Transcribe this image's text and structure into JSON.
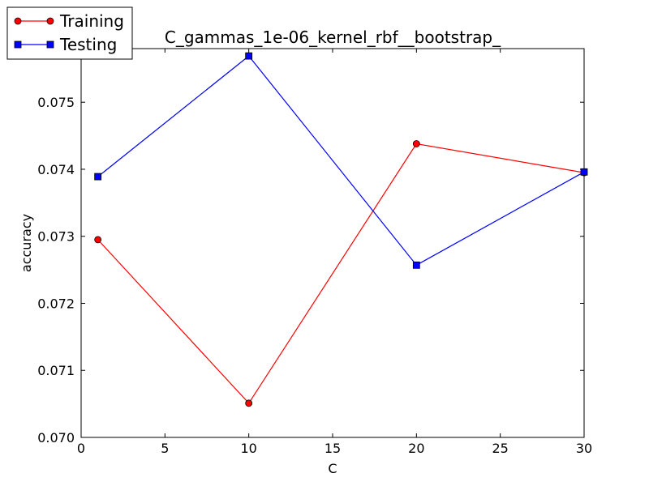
{
  "chart_data": {
    "type": "line",
    "title": "C_gammas_1e-06_kernel_rbf__bootstrap_",
    "xlabel": "C",
    "ylabel": "accuracy",
    "xlim": [
      0,
      30
    ],
    "ylim": [
      0.07,
      0.0758
    ],
    "xticks": [
      0,
      5,
      10,
      15,
      20,
      25,
      30
    ],
    "yticks": [
      0.07,
      0.071,
      0.072,
      0.073,
      0.074,
      0.075
    ],
    "xtick_labels": [
      "0",
      "5",
      "10",
      "15",
      "20",
      "25",
      "30"
    ],
    "ytick_labels": [
      "0.070",
      "0.071",
      "0.072",
      "0.073",
      "0.074",
      "0.075"
    ],
    "grid": false,
    "legend_position": "top-left",
    "series": [
      {
        "name": "Training",
        "color": "#ff0000",
        "marker": "circle",
        "x": [
          1,
          10,
          20,
          30
        ],
        "y": [
          0.07295,
          0.07051,
          0.07438,
          0.07395
        ]
      },
      {
        "name": "Testing",
        "color": "#0000ff",
        "marker": "square",
        "x": [
          1,
          10,
          20,
          30
        ],
        "y": [
          0.07389,
          0.07569,
          0.07257,
          0.07396
        ]
      }
    ]
  }
}
